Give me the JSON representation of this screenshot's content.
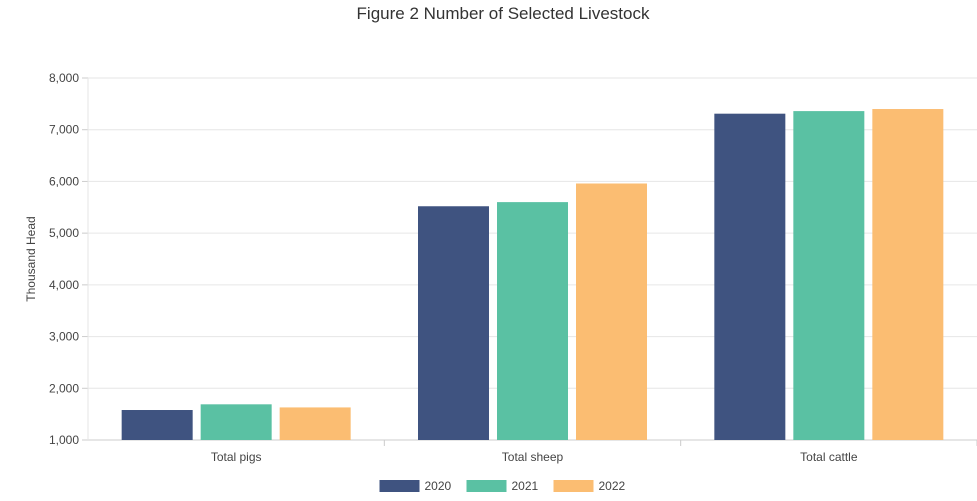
{
  "chart_data": {
    "type": "bar",
    "title": "Figure 2 Number of Selected Livestock",
    "ylabel": "Thousand Head",
    "xlabel": "",
    "categories": [
      "Total pigs",
      "Total sheep",
      "Total cattle"
    ],
    "series": [
      {
        "name": "2020",
        "values": [
          1580,
          5520,
          7310
        ],
        "color": "#3f5380"
      },
      {
        "name": "2021",
        "values": [
          1690,
          5600,
          7360
        ],
        "color": "#5ac1a3"
      },
      {
        "name": "2022",
        "values": [
          1630,
          5960,
          7400
        ],
        "color": "#fbbd72"
      }
    ],
    "ylim": [
      1000,
      8000
    ],
    "yticks": [
      1000,
      2000,
      3000,
      4000,
      5000,
      6000,
      7000,
      8000
    ],
    "ytick_labels": [
      "1,000",
      "2,000",
      "3,000",
      "4,000",
      "5,000",
      "6,000",
      "7,000",
      "8,000"
    ],
    "grid": true,
    "legend": "bottom"
  }
}
